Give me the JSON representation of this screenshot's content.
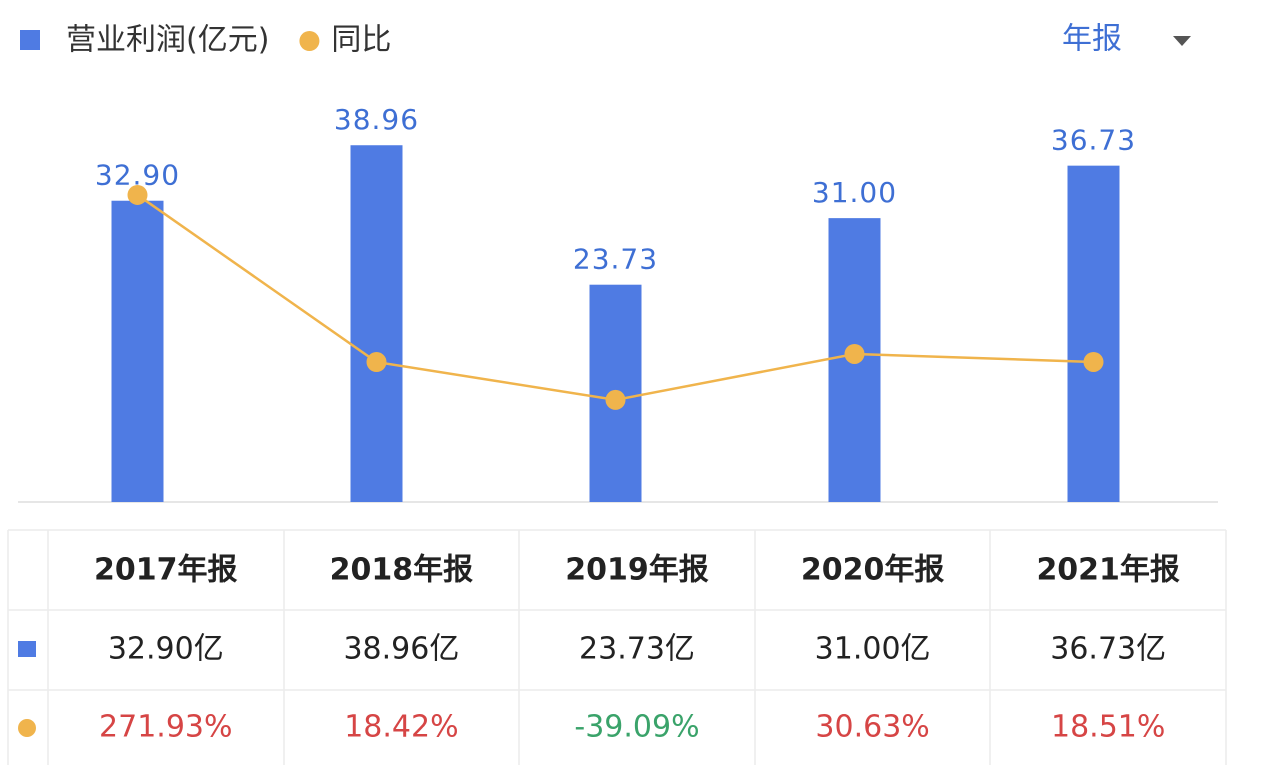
{
  "chart_data": {
    "type": "bar",
    "categories": [
      "2017年报",
      "2018年报",
      "2019年报",
      "2020年报",
      "2021年报"
    ],
    "series": [
      {
        "name": "营业利润(亿元)",
        "type": "bar",
        "color": "#4f7be3",
        "values": [
          32.9,
          38.96,
          23.73,
          31.0,
          36.73
        ],
        "value_labels": [
          "32.90",
          "38.96",
          "23.73",
          "31.00",
          "36.73"
        ]
      },
      {
        "name": "同比",
        "type": "line",
        "axis": "y2",
        "color": "#f0b44c",
        "values": [
          271.93,
          18.42,
          -39.09,
          30.63,
          18.51
        ]
      }
    ],
    "ylim": [
      0,
      43.9
    ],
    "y2lim": [
      -194,
      416
    ],
    "legend": "top-left"
  },
  "period_selector": "年报",
  "table": {
    "rows": [
      [
        "32.90亿",
        "38.96亿",
        "23.73亿",
        "31.00亿",
        "36.73亿"
      ],
      [
        "271.93%",
        "18.42%",
        "-39.09%",
        "30.63%",
        "18.51%"
      ]
    ]
  }
}
